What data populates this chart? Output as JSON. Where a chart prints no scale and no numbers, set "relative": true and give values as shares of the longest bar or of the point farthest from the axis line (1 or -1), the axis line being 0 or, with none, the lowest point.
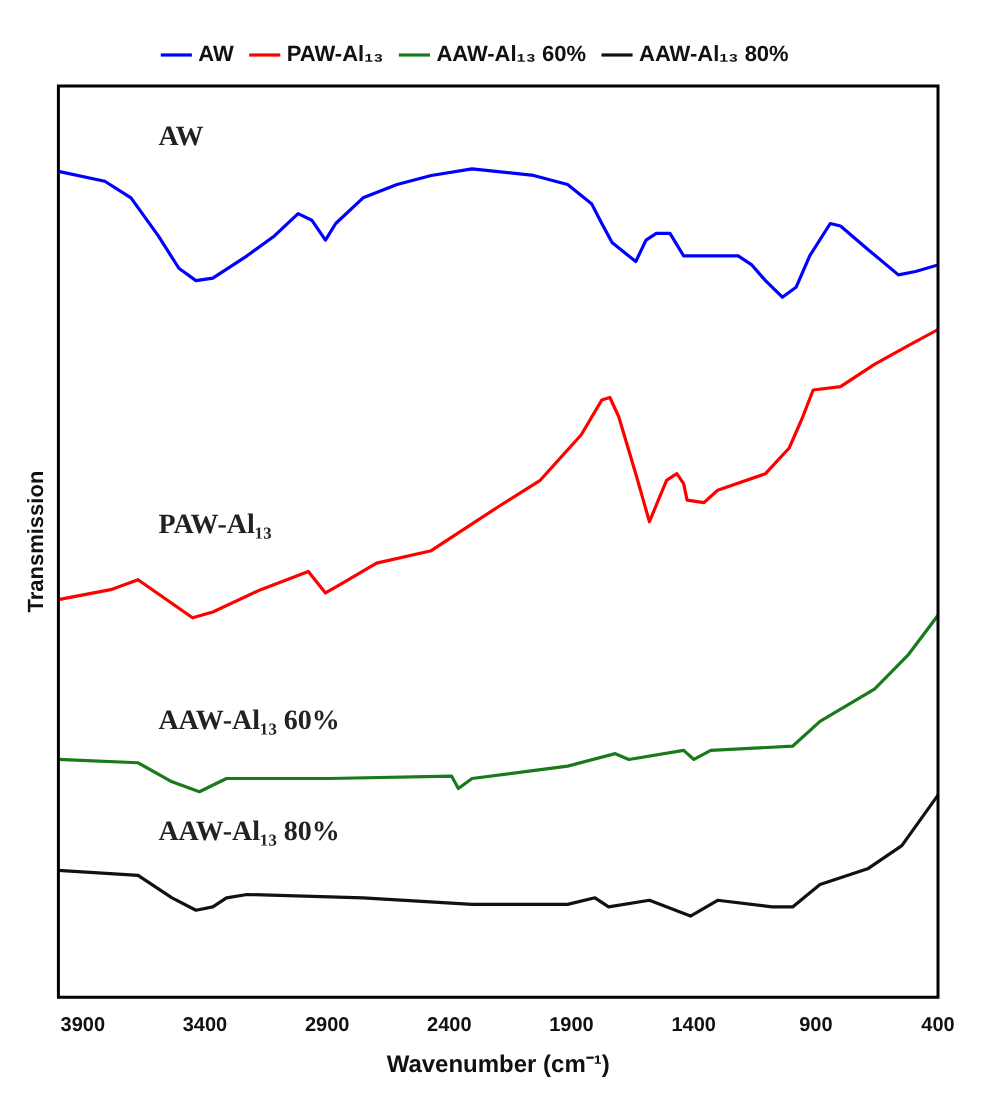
{
  "chart_data": {
    "type": "line",
    "xlabel": "Wavenumber (cm⁻¹)",
    "ylabel": "Transmission",
    "relative": true,
    "legend": "top",
    "grid": false,
    "marker": "none",
    "line_style": "solid",
    "xlim": [
      4000,
      400
    ],
    "xticks": [
      3900,
      3400,
      2900,
      2400,
      1900,
      1400,
      900,
      400
    ],
    "annotations": [
      "AW",
      "PAW-Al₁₃",
      "AAW-Al₁₃ 60%",
      "AAW-Al₁₃ 80%"
    ],
    "series": [
      {
        "name": "AW",
        "color": "#0000ff",
        "x": [
          4000,
          3810,
          3703,
          3591,
          3507,
          3437,
          3368,
          3228,
          3116,
          3019,
          2963,
          2907,
          2865,
          2753,
          2614,
          2474,
          2307,
          2055,
          1916,
          1818,
          1776,
          1734,
          1637,
          1595,
          1553,
          1497,
          1441,
          1358,
          1218,
          1162,
          1106,
          1037,
          981,
          925,
          841,
          799,
          688,
          562,
          492,
          400
        ],
        "values": [
          0.997,
          0.985,
          0.965,
          0.919,
          0.88,
          0.865,
          0.868,
          0.895,
          0.919,
          0.946,
          0.938,
          0.914,
          0.934,
          0.965,
          0.981,
          0.992,
          1.0,
          0.992,
          0.981,
          0.958,
          0.934,
          0.911,
          0.888,
          0.914,
          0.922,
          0.922,
          0.895,
          0.895,
          0.895,
          0.884,
          0.865,
          0.845,
          0.857,
          0.895,
          0.934,
          0.931,
          0.903,
          0.872,
          0.876,
          0.884
        ]
      },
      {
        "name": "PAW-Al₁₃",
        "color": "#ff0000",
        "x": [
          4000,
          3786,
          3674,
          3451,
          3368,
          3172,
          2977,
          2907,
          2837,
          2698,
          2474,
          2195,
          2028,
          1860,
          1776,
          1743,
          1707,
          1637,
          1581,
          1511,
          1469,
          1441,
          1427,
          1358,
          1302,
          1106,
          1009,
          953,
          911,
          799,
          660,
          520,
          400
        ],
        "values": [
          0.48,
          0.492,
          0.504,
          0.458,
          0.465,
          0.492,
          0.514,
          0.488,
          0.5,
          0.524,
          0.539,
          0.593,
          0.624,
          0.679,
          0.721,
          0.724,
          0.701,
          0.632,
          0.574,
          0.624,
          0.632,
          0.62,
          0.6,
          0.597,
          0.612,
          0.632,
          0.663,
          0.701,
          0.733,
          0.737,
          0.764,
          0.787,
          0.806
        ]
      },
      {
        "name": "AAW-Al₁₃ 60%",
        "color": "#1a7a1a",
        "x": [
          4000,
          3674,
          3535,
          3423,
          3312,
          2893,
          2391,
          2363,
          2307,
          1916,
          1721,
          1665,
          1441,
          1399,
          1330,
          995,
          883,
          660,
          520,
          400
        ],
        "values": [
          0.287,
          0.283,
          0.26,
          0.248,
          0.264,
          0.264,
          0.267,
          0.252,
          0.264,
          0.279,
          0.294,
          0.287,
          0.298,
          0.287,
          0.298,
          0.303,
          0.333,
          0.372,
          0.414,
          0.461
        ]
      },
      {
        "name": "AAW-Al₁₃ 80%",
        "color": "#111111",
        "x": [
          4000,
          3674,
          3535,
          3437,
          3368,
          3312,
          3228,
          2753,
          2307,
          1916,
          1804,
          1748,
          1581,
          1413,
          1302,
          1079,
          995,
          883,
          688,
          548,
          400
        ],
        "values": [
          0.153,
          0.147,
          0.12,
          0.105,
          0.109,
          0.12,
          0.124,
          0.12,
          0.112,
          0.112,
          0.12,
          0.109,
          0.117,
          0.098,
          0.117,
          0.109,
          0.109,
          0.136,
          0.155,
          0.183,
          0.244
        ]
      }
    ]
  }
}
